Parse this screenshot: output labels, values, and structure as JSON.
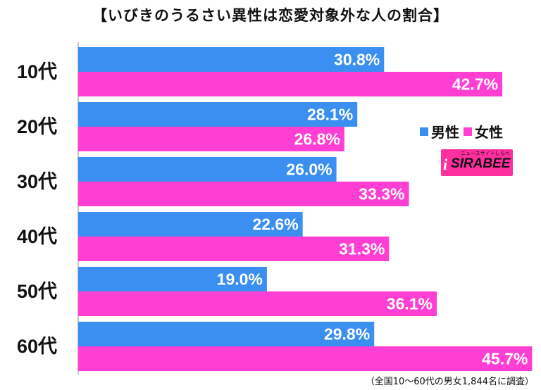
{
  "title": "【いびきのうるさい異性は恋愛対象外な人の割合】",
  "legend": {
    "male": "男性",
    "female": "女性"
  },
  "logo": {
    "main": "SIRABEE",
    "sub": "ニュースサイトしらべぇ",
    "mark": "i"
  },
  "footnote": "（全国10〜60代の男女1,844名に調査）",
  "colors": {
    "male": "#3a8ff0",
    "female": "#ff3fd4"
  },
  "chart_data": {
    "type": "bar",
    "orientation": "horizontal",
    "title": "【いびきのうるさい異性は恋愛対象外な人の割合】",
    "categories": [
      "10代",
      "20代",
      "30代",
      "40代",
      "50代",
      "60代"
    ],
    "series": [
      {
        "name": "男性",
        "values": [
          30.8,
          28.1,
          26.0,
          22.6,
          19.0,
          29.8
        ]
      },
      {
        "name": "女性",
        "values": [
          42.7,
          26.8,
          33.3,
          31.3,
          36.1,
          45.7
        ]
      }
    ],
    "value_labels": {
      "男性": [
        "30.8%",
        "28.1%",
        "26.0%",
        "22.6%",
        "19.0%",
        "29.8%"
      ],
      "女性": [
        "42.7%",
        "26.8%",
        "33.3%",
        "31.3%",
        "36.1%",
        "45.7%"
      ]
    },
    "xlim": [
      0,
      50
    ],
    "grid": false,
    "legend_position": "right"
  }
}
